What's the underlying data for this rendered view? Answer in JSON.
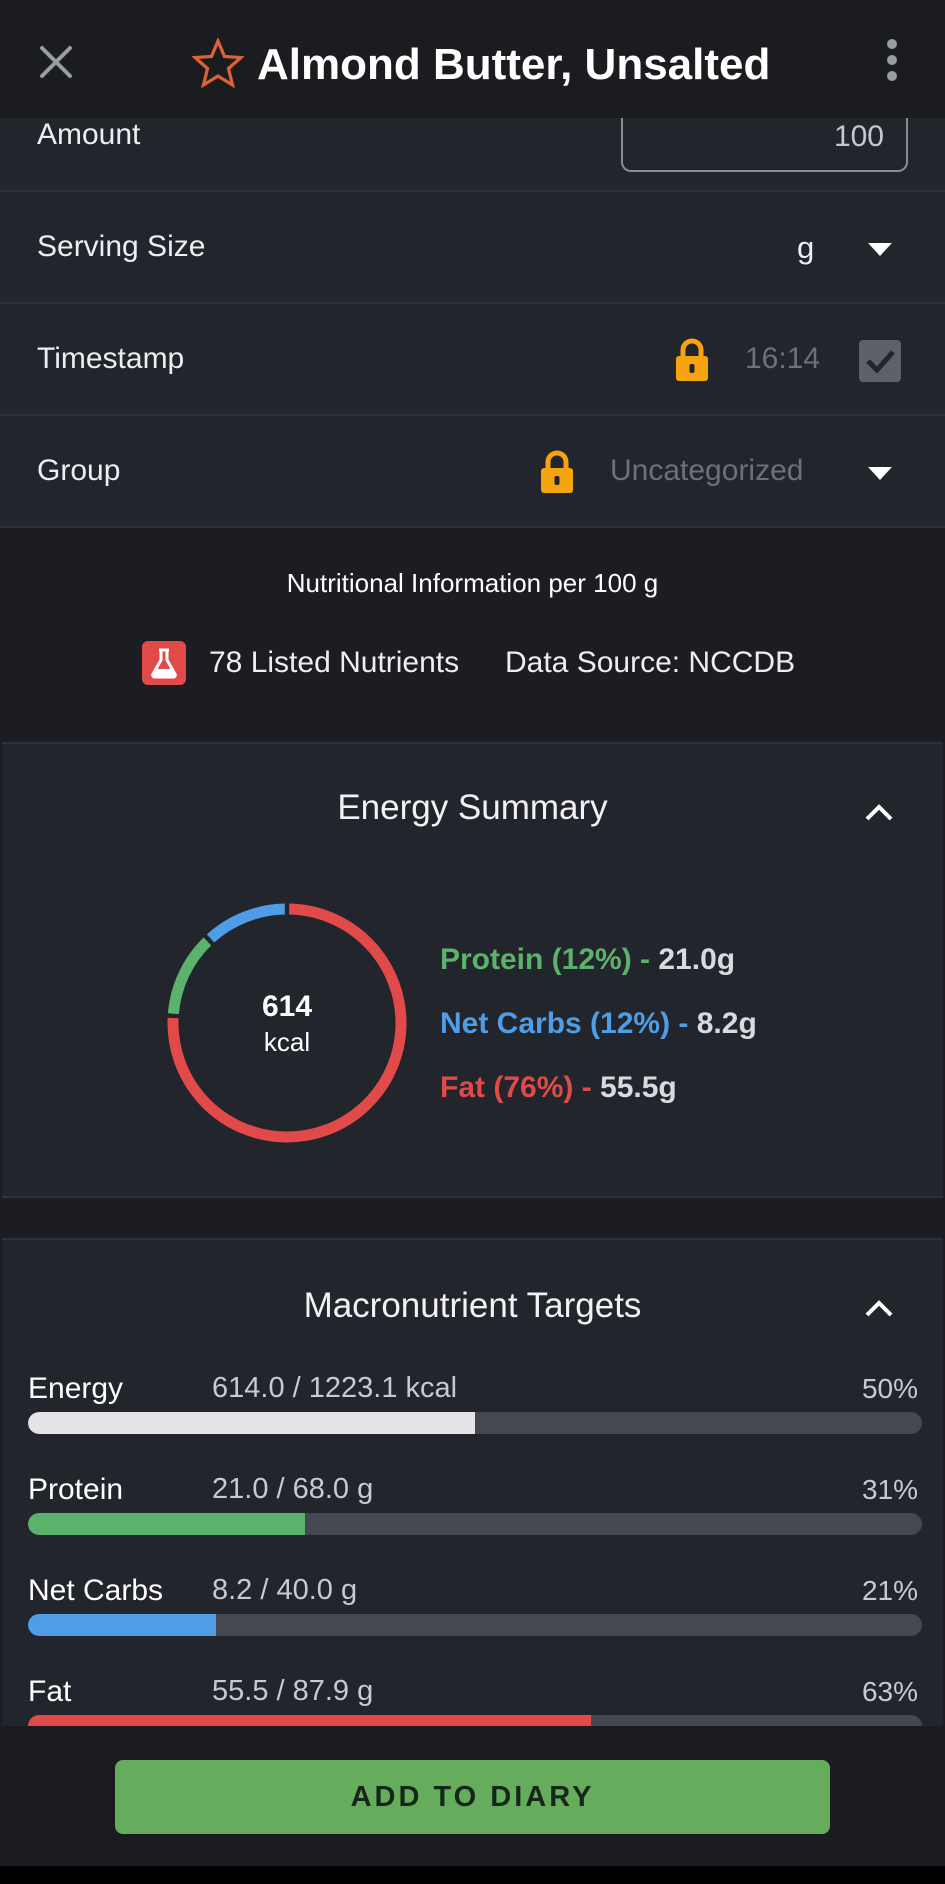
{
  "header": {
    "title": "Almond Butter, Unsalted",
    "close_icon": "close-icon",
    "favorite_icon": "star-outline-icon",
    "more_icon": "more-vertical-icon",
    "accent_color": "#e0603a"
  },
  "form": {
    "amount": {
      "label": "Amount",
      "value": "100"
    },
    "serving_size": {
      "label": "Serving Size",
      "value": "g"
    },
    "timestamp": {
      "label": "Timestamp",
      "value": "16:14",
      "checked": true
    },
    "group": {
      "label": "Group",
      "value": "Uncategorized"
    }
  },
  "nutrition_info": {
    "title": "Nutritional Information per 100 g",
    "listed_nutrients": "78 Listed Nutrients",
    "data_source": "Data Source: NCCDB"
  },
  "energy_summary": {
    "title": "Energy Summary",
    "kcal": "614",
    "kcal_unit": "kcal",
    "macros": [
      {
        "name": "Protein (12%) -",
        "value": "21.0g",
        "color": "#5bb26a",
        "fraction": 0.12
      },
      {
        "name": "Net Carbs (12%) -",
        "value": "8.2g",
        "color": "#4f9de6",
        "fraction": 0.12
      },
      {
        "name": "Fat (76%) -",
        "value": "55.5g",
        "color": "#e04a48",
        "fraction": 0.76
      }
    ]
  },
  "macro_targets": {
    "title": "Macronutrient Targets",
    "rows": [
      {
        "label": "Energy",
        "amount": "614.0 / 1223.1 kcal",
        "percent": "50%",
        "fraction": 0.5,
        "color": "#e4e4e6"
      },
      {
        "label": "Protein",
        "amount": "21.0 / 68.0 g",
        "percent": "31%",
        "fraction": 0.31,
        "color": "#5bb26a"
      },
      {
        "label": "Net Carbs",
        "amount": "8.2 / 40.0 g",
        "percent": "21%",
        "fraction": 0.21,
        "color": "#4f9de6"
      },
      {
        "label": "Fat",
        "amount": "55.5 / 87.9 g",
        "percent": "63%",
        "fraction": 0.63,
        "color": "#e04a48"
      }
    ]
  },
  "footer": {
    "add_label": "ADD TO DIARY",
    "button_color": "#65ad5c"
  }
}
